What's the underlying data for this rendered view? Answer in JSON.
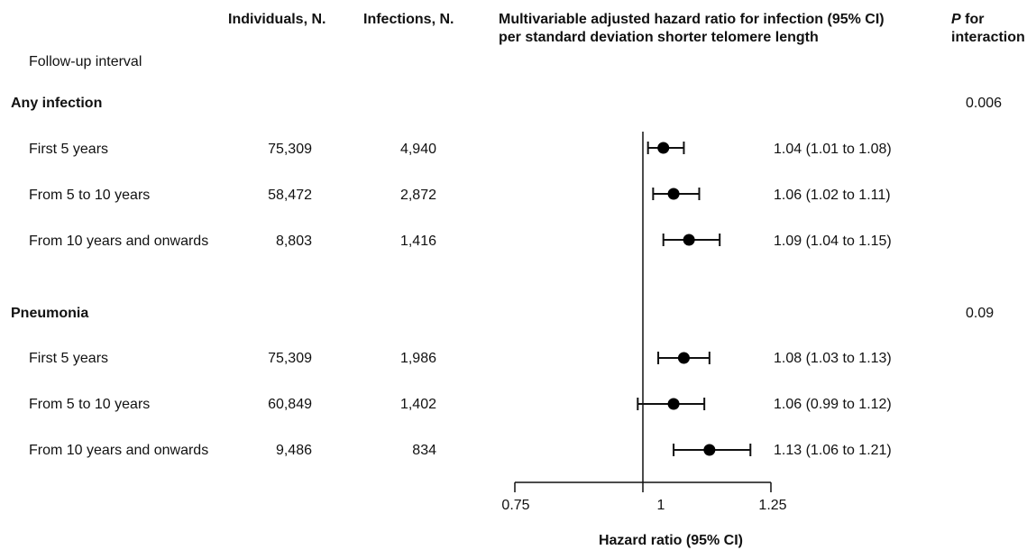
{
  "headers": {
    "individuals": "Individuals, N.",
    "infections": "Infections, N.",
    "hr_line1": "Multivariable adjusted hazard ratio for infection (95% CI)",
    "hr_line2": "per standard deviation shorter telomere length",
    "p_italic": "P",
    "p_for": " for",
    "p_line2": "interaction",
    "followup": "Follow-up  interval"
  },
  "groups": [
    {
      "name": "Any infection",
      "p_interaction": "0.006",
      "rows": [
        {
          "label": "First 5 years",
          "individuals": "75,309",
          "infections": "4,940",
          "hr": 1.04,
          "lo": 1.01,
          "hi": 1.08,
          "text": "1.04 (1.01 to 1.08)"
        },
        {
          "label": "From 5 to 10 years",
          "individuals": "58,472",
          "infections": "2,872",
          "hr": 1.06,
          "lo": 1.02,
          "hi": 1.11,
          "text": "1.06 (1.02 to 1.11)"
        },
        {
          "label": "From 10 years and onwards",
          "individuals": "8,803",
          "infections": "1,416",
          "hr": 1.09,
          "lo": 1.04,
          "hi": 1.15,
          "text": "1.09 (1.04 to 1.15)"
        }
      ]
    },
    {
      "name": "Pneumonia",
      "p_interaction": "0.09",
      "rows": [
        {
          "label": "First 5 years",
          "individuals": "75,309",
          "infections": "1,986",
          "hr": 1.08,
          "lo": 1.03,
          "hi": 1.13,
          "text": "1.08 (1.03 to 1.13)"
        },
        {
          "label": "From 5 to 10 years",
          "individuals": "60,849",
          "infections": "1,402",
          "hr": 1.06,
          "lo": 0.99,
          "hi": 1.12,
          "text": "1.06 (0.99 to 1.12)"
        },
        {
          "label": "From 10 years and onwards",
          "individuals": "9,486",
          "infections": "834",
          "hr": 1.13,
          "lo": 1.06,
          "hi": 1.21,
          "text": "1.13 (1.06 to 1.21)"
        }
      ]
    }
  ],
  "chart_data": {
    "type": "forest",
    "xlabel": "Hazard ratio (95% CI)",
    "xlim": [
      0.75,
      1.25
    ],
    "ticks": [
      0.75,
      1,
      1.25
    ],
    "tick_labels": [
      "0.75",
      "1",
      "1.25"
    ],
    "reference_line": 1,
    "series": [
      {
        "name": "Any infection",
        "categories": [
          "First 5 years",
          "From 5 to 10 years",
          "From 10 years and onwards"
        ],
        "values": [
          1.04,
          1.06,
          1.09
        ],
        "ci_low": [
          1.01,
          1.02,
          1.04
        ],
        "ci_high": [
          1.08,
          1.11,
          1.15
        ]
      },
      {
        "name": "Pneumonia",
        "categories": [
          "First 5 years",
          "From 5 to 10 years",
          "From 10 years and onwards"
        ],
        "values": [
          1.08,
          1.06,
          1.13
        ],
        "ci_low": [
          1.03,
          0.99,
          1.06
        ],
        "ci_high": [
          1.13,
          1.12,
          1.21
        ]
      }
    ]
  }
}
